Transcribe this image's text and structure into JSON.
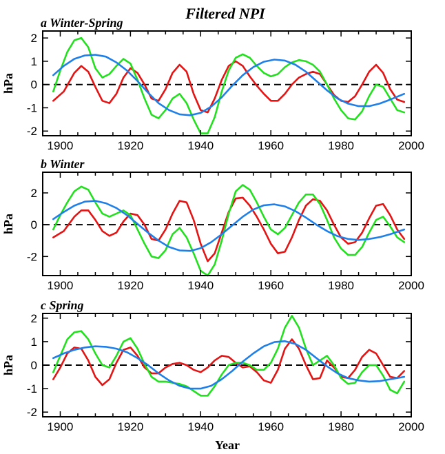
{
  "figure": {
    "title": "Filtered NPI",
    "xlabel": "Year"
  },
  "colors": {
    "red": "#e31414",
    "green": "#22e01e",
    "blue": "#1f7fe8",
    "axis": "#000000"
  },
  "chart_data": [
    {
      "type": "line",
      "title": "a Winter-Spring",
      "xlabel": "",
      "ylabel": "hPa",
      "xlim": [
        1895,
        2000
      ],
      "ylim": [
        -2.2,
        2.3
      ],
      "xticks": [
        1900,
        1920,
        1940,
        1960,
        1980,
        2000
      ],
      "yticks": [
        2,
        1,
        0,
        -1,
        -2
      ],
      "series": [
        {
          "color": "red",
          "x": [
            1898,
            1901,
            1904,
            1906,
            1908,
            1910,
            1912,
            1914,
            1916,
            1918,
            1920,
            1922,
            1924,
            1926,
            1928,
            1930,
            1932,
            1934,
            1936,
            1938,
            1940,
            1942,
            1944,
            1946,
            1948,
            1950,
            1952,
            1954,
            1956,
            1958,
            1960,
            1962,
            1964,
            1966,
            1968,
            1970,
            1972,
            1974,
            1976,
            1978,
            1980,
            1982,
            1984,
            1986,
            1988,
            1990,
            1992,
            1994,
            1996,
            1998
          ],
          "y": [
            -0.7,
            -0.3,
            0.5,
            0.8,
            0.55,
            -0.1,
            -0.7,
            -0.8,
            -0.4,
            0.3,
            0.7,
            0.5,
            0.0,
            -0.6,
            -0.7,
            -0.2,
            0.5,
            0.85,
            0.55,
            -0.4,
            -1.1,
            -1.2,
            -0.6,
            0.2,
            0.8,
            1.0,
            0.8,
            0.35,
            -0.05,
            -0.4,
            -0.7,
            -0.7,
            -0.4,
            0.0,
            0.3,
            0.45,
            0.55,
            0.45,
            0.0,
            -0.45,
            -0.7,
            -0.75,
            -0.5,
            0.0,
            0.55,
            0.85,
            0.5,
            -0.2,
            -0.65,
            -0.75
          ]
        },
        {
          "color": "green",
          "x": [
            1898,
            1900,
            1902,
            1904,
            1906,
            1908,
            1910,
            1912,
            1914,
            1916,
            1918,
            1920,
            1922,
            1924,
            1926,
            1928,
            1930,
            1932,
            1934,
            1936,
            1938,
            1940,
            1942,
            1944,
            1946,
            1948,
            1950,
            1952,
            1954,
            1956,
            1958,
            1960,
            1962,
            1964,
            1966,
            1968,
            1970,
            1972,
            1974,
            1976,
            1978,
            1980,
            1982,
            1984,
            1986,
            1988,
            1990,
            1992,
            1994,
            1996,
            1998
          ],
          "y": [
            -0.3,
            0.6,
            1.4,
            1.9,
            2.0,
            1.6,
            0.7,
            0.3,
            0.45,
            0.8,
            1.1,
            0.9,
            0.2,
            -0.6,
            -1.3,
            -1.45,
            -1.1,
            -0.6,
            -0.4,
            -0.8,
            -1.5,
            -2.1,
            -2.1,
            -1.4,
            -0.3,
            0.6,
            1.15,
            1.3,
            1.15,
            0.8,
            0.5,
            0.35,
            0.45,
            0.75,
            0.95,
            1.05,
            1.0,
            0.85,
            0.55,
            0.0,
            -0.6,
            -1.1,
            -1.45,
            -1.5,
            -1.15,
            -0.5,
            0.0,
            -0.1,
            -0.6,
            -1.1,
            -1.2
          ]
        },
        {
          "color": "blue",
          "x": [
            1898,
            1901,
            1904,
            1907,
            1910,
            1913,
            1916,
            1919,
            1922,
            1925,
            1928,
            1931,
            1934,
            1937,
            1940,
            1943,
            1946,
            1949,
            1952,
            1955,
            1958,
            1961,
            1964,
            1967,
            1970,
            1973,
            1976,
            1979,
            1982,
            1985,
            1988,
            1991,
            1994,
            1998
          ],
          "y": [
            0.4,
            0.8,
            1.1,
            1.25,
            1.28,
            1.2,
            0.95,
            0.6,
            0.15,
            -0.35,
            -0.8,
            -1.1,
            -1.28,
            -1.32,
            -1.22,
            -0.95,
            -0.55,
            -0.05,
            0.4,
            0.75,
            0.98,
            1.07,
            1.03,
            0.85,
            0.55,
            0.15,
            -0.25,
            -0.6,
            -0.82,
            -0.93,
            -0.93,
            -0.82,
            -0.65,
            -0.4
          ]
        }
      ]
    },
    {
      "type": "line",
      "title": "b Winter",
      "xlabel": "",
      "ylabel": "hPa",
      "xlim": [
        1895,
        2000
      ],
      "ylim": [
        -3.2,
        3.3
      ],
      "xticks": [
        1900,
        1920,
        1940,
        1960,
        1980,
        2000
      ],
      "yticks": [
        2,
        0,
        -2
      ],
      "series": [
        {
          "color": "red",
          "x": [
            1898,
            1901,
            1904,
            1906,
            1908,
            1910,
            1912,
            1914,
            1916,
            1918,
            1920,
            1922,
            1924,
            1926,
            1928,
            1930,
            1932,
            1934,
            1936,
            1938,
            1940,
            1942,
            1944,
            1946,
            1948,
            1950,
            1952,
            1954,
            1956,
            1958,
            1960,
            1962,
            1964,
            1966,
            1968,
            1970,
            1972,
            1974,
            1976,
            1978,
            1980,
            1982,
            1984,
            1986,
            1988,
            1990,
            1992,
            1994,
            1996,
            1998
          ],
          "y": [
            -0.8,
            -0.4,
            0.5,
            0.9,
            0.9,
            0.3,
            -0.4,
            -0.7,
            -0.5,
            0.2,
            0.7,
            0.6,
            0.0,
            -0.9,
            -1.0,
            -0.3,
            0.7,
            1.5,
            1.4,
            0.3,
            -1.2,
            -2.3,
            -1.8,
            -0.5,
            0.8,
            1.65,
            1.7,
            1.2,
            0.5,
            -0.3,
            -1.2,
            -1.8,
            -1.7,
            -0.8,
            0.3,
            1.2,
            1.6,
            1.5,
            0.9,
            0.0,
            -0.8,
            -1.2,
            -1.1,
            -0.5,
            0.4,
            1.2,
            1.3,
            0.6,
            -0.3,
            -0.9
          ]
        },
        {
          "color": "green",
          "x": [
            1898,
            1900,
            1902,
            1904,
            1906,
            1908,
            1910,
            1912,
            1914,
            1916,
            1918,
            1920,
            1922,
            1924,
            1926,
            1928,
            1930,
            1932,
            1934,
            1936,
            1938,
            1940,
            1942,
            1944,
            1946,
            1948,
            1950,
            1952,
            1954,
            1956,
            1958,
            1960,
            1962,
            1964,
            1966,
            1968,
            1970,
            1972,
            1974,
            1976,
            1978,
            1980,
            1982,
            1984,
            1986,
            1988,
            1990,
            1992,
            1994,
            1996,
            1998
          ],
          "y": [
            -0.3,
            0.6,
            1.4,
            2.1,
            2.4,
            2.2,
            1.4,
            0.7,
            0.5,
            0.7,
            0.9,
            0.6,
            -0.3,
            -1.2,
            -2.0,
            -2.1,
            -1.6,
            -0.6,
            -0.2,
            -0.8,
            -1.8,
            -2.9,
            -3.2,
            -2.5,
            -1.0,
            0.7,
            2.1,
            2.5,
            2.2,
            1.4,
            0.5,
            -0.3,
            -0.6,
            -0.2,
            0.6,
            1.4,
            1.9,
            1.9,
            1.3,
            0.3,
            -0.8,
            -1.5,
            -1.9,
            -1.9,
            -1.4,
            -0.5,
            0.3,
            0.5,
            -0.1,
            -0.8,
            -1.1
          ]
        },
        {
          "color": "blue",
          "x": [
            1898,
            1901,
            1904,
            1907,
            1910,
            1913,
            1916,
            1919,
            1922,
            1925,
            1928,
            1931,
            1934,
            1937,
            1940,
            1943,
            1946,
            1949,
            1952,
            1955,
            1958,
            1961,
            1964,
            1967,
            1970,
            1973,
            1976,
            1979,
            1982,
            1985,
            1988,
            1991,
            1994,
            1998
          ],
          "y": [
            0.35,
            0.8,
            1.2,
            1.45,
            1.5,
            1.35,
            1.05,
            0.6,
            0.05,
            -0.5,
            -1.0,
            -1.4,
            -1.62,
            -1.65,
            -1.48,
            -1.1,
            -0.6,
            -0.05,
            0.5,
            0.95,
            1.22,
            1.28,
            1.15,
            0.85,
            0.45,
            0.0,
            -0.4,
            -0.72,
            -0.9,
            -0.96,
            -0.9,
            -0.78,
            -0.6,
            -0.3
          ]
        }
      ]
    },
    {
      "type": "line",
      "title": "c Spring",
      "xlabel": "Year",
      "ylabel": "hPa",
      "xlim": [
        1895,
        2000
      ],
      "ylim": [
        -2.2,
        2.2
      ],
      "xticks": [
        1900,
        1920,
        1940,
        1960,
        1980,
        2000
      ],
      "yticks": [
        2,
        1,
        0,
        -1,
        -2
      ],
      "series": [
        {
          "color": "red",
          "x": [
            1898,
            1900,
            1902,
            1904,
            1906,
            1908,
            1910,
            1912,
            1914,
            1916,
            1918,
            1920,
            1922,
            1924,
            1926,
            1928,
            1930,
            1932,
            1934,
            1936,
            1938,
            1940,
            1942,
            1944,
            1946,
            1948,
            1950,
            1952,
            1954,
            1956,
            1958,
            1960,
            1962,
            1964,
            1966,
            1968,
            1970,
            1972,
            1974,
            1976,
            1978,
            1980,
            1982,
            1984,
            1986,
            1988,
            1990,
            1992,
            1994,
            1996,
            1998
          ],
          "y": [
            -0.6,
            -0.1,
            0.5,
            0.75,
            0.7,
            0.2,
            -0.5,
            -0.85,
            -0.6,
            0.1,
            0.65,
            0.75,
            0.4,
            -0.1,
            -0.35,
            -0.35,
            -0.1,
            0.05,
            0.1,
            0.0,
            -0.2,
            -0.3,
            -0.1,
            0.2,
            0.4,
            0.35,
            0.1,
            -0.1,
            -0.05,
            -0.3,
            -0.65,
            -0.75,
            -0.2,
            0.7,
            1.1,
            0.7,
            0.0,
            -0.6,
            -0.55,
            0.2,
            -0.1,
            -0.5,
            -0.55,
            -0.2,
            0.35,
            0.65,
            0.5,
            0.0,
            -0.5,
            -0.55,
            -0.25
          ]
        },
        {
          "color": "green",
          "x": [
            1898,
            1900,
            1902,
            1904,
            1906,
            1908,
            1910,
            1912,
            1914,
            1916,
            1918,
            1920,
            1922,
            1924,
            1926,
            1928,
            1930,
            1932,
            1934,
            1936,
            1938,
            1940,
            1942,
            1944,
            1946,
            1948,
            1950,
            1952,
            1954,
            1956,
            1958,
            1960,
            1962,
            1964,
            1966,
            1968,
            1970,
            1972,
            1974,
            1976,
            1978,
            1980,
            1982,
            1984,
            1986,
            1988,
            1990,
            1992,
            1994,
            1996,
            1998
          ],
          "y": [
            -0.3,
            0.4,
            1.1,
            1.4,
            1.45,
            1.1,
            0.5,
            0.0,
            -0.1,
            0.4,
            1.0,
            1.15,
            0.7,
            0.05,
            -0.5,
            -0.7,
            -0.7,
            -0.75,
            -0.8,
            -0.9,
            -1.1,
            -1.3,
            -1.3,
            -0.9,
            -0.4,
            0.0,
            0.1,
            0.1,
            0.0,
            -0.2,
            -0.2,
            0.1,
            0.7,
            1.6,
            2.1,
            1.6,
            0.7,
            0.0,
            0.2,
            0.4,
            0.0,
            -0.55,
            -0.8,
            -0.75,
            -0.3,
            0.0,
            0.0,
            -0.45,
            -1.05,
            -1.2,
            -0.7
          ]
        },
        {
          "color": "blue",
          "x": [
            1898,
            1901,
            1904,
            1907,
            1910,
            1913,
            1916,
            1919,
            1922,
            1925,
            1928,
            1931,
            1934,
            1937,
            1940,
            1943,
            1946,
            1949,
            1952,
            1955,
            1958,
            1961,
            1964,
            1967,
            1970,
            1973,
            1976,
            1979,
            1982,
            1985,
            1988,
            1991,
            1994,
            1998
          ],
          "y": [
            0.3,
            0.5,
            0.65,
            0.75,
            0.8,
            0.78,
            0.7,
            0.55,
            0.3,
            0.0,
            -0.35,
            -0.65,
            -0.88,
            -1.0,
            -1.0,
            -0.88,
            -0.6,
            -0.25,
            0.15,
            0.5,
            0.8,
            0.98,
            1.02,
            0.9,
            0.65,
            0.3,
            -0.05,
            -0.35,
            -0.55,
            -0.65,
            -0.7,
            -0.68,
            -0.6,
            -0.5
          ]
        }
      ]
    }
  ]
}
